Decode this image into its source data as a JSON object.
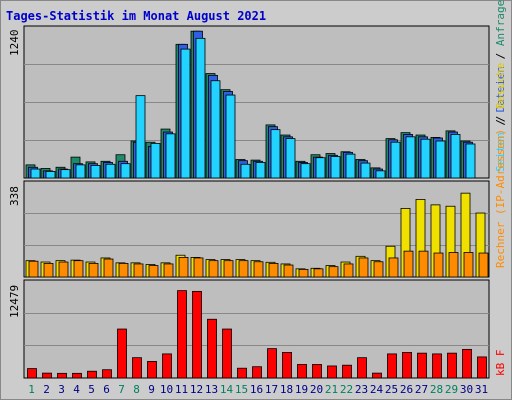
{
  "title": "Tages-Statistik im Monat August 2021",
  "colors": {
    "frame_bg": "#cccccc",
    "panel_bg": "#bebebe",
    "grid": "#888888",
    "title": "#0000cc",
    "weekday": "#000088",
    "weekend": "#008060",
    "anfragen": "#1f8a6a",
    "dateien": "#3060e0",
    "seiten": "#22d3ff",
    "besuche": "#f0e000",
    "rechner": "#ff8c00",
    "kbf": "#ff0000"
  },
  "labels": {
    "anfragen": "Anfragen",
    "sep1": " / ",
    "dateien": "Dateien",
    "sep2": " / ",
    "seiten": "Seiten",
    "besuche": "Besuche",
    "rechner_text": "Rechner (IP-Adressen)",
    "kbf": "kB F"
  },
  "chart_data": [
    {
      "type": "bar",
      "panel": "top",
      "ymax_label": "1240",
      "ylim": [
        0,
        1240
      ],
      "categories": [
        "1",
        "2",
        "3",
        "4",
        "5",
        "6",
        "7",
        "8",
        "9",
        "10",
        "11",
        "12",
        "13",
        "14",
        "15",
        "16",
        "17",
        "18",
        "19",
        "20",
        "21",
        "22",
        "23",
        "24",
        "25",
        "26",
        "27",
        "28",
        "29",
        "30",
        "31"
      ],
      "weekend_days": [
        "1",
        "7",
        "8",
        "14",
        "15",
        "21",
        "22",
        "28",
        "29"
      ],
      "series": [
        {
          "name": "Anfragen",
          "values": [
            110,
            80,
            90,
            175,
            135,
            140,
            195,
            310,
            300,
            410,
            1120,
            1230,
            875,
            740,
            155,
            150,
            445,
            360,
            140,
            195,
            205,
            220,
            155,
            85,
            330,
            380,
            360,
            340,
            395,
            310,
            0
          ]
        },
        {
          "name": "Dateien",
          "values": [
            90,
            60,
            75,
            120,
            120,
            130,
            140,
            300,
            265,
            385,
            1120,
            1230,
            860,
            725,
            145,
            140,
            430,
            345,
            130,
            175,
            190,
            215,
            145,
            75,
            320,
            365,
            345,
            335,
            385,
            300,
            0
          ]
        },
        {
          "name": "Seiten",
          "values": [
            75,
            55,
            70,
            110,
            105,
            115,
            120,
            690,
            290,
            370,
            1080,
            1170,
            815,
            695,
            115,
            130,
            405,
            330,
            120,
            170,
            180,
            200,
            125,
            60,
            300,
            345,
            325,
            310,
            365,
            285,
            0
          ]
        }
      ]
    },
    {
      "type": "bar",
      "panel": "middle",
      "ymax_label": "338",
      "ylim": [
        0,
        338
      ],
      "categories": [
        "1",
        "2",
        "3",
        "4",
        "5",
        "6",
        "7",
        "8",
        "9",
        "10",
        "11",
        "12",
        "13",
        "14",
        "15",
        "16",
        "17",
        "18",
        "19",
        "20",
        "21",
        "22",
        "23",
        "24",
        "25",
        "26",
        "27",
        "28",
        "29",
        "30",
        "31"
      ],
      "series": [
        {
          "name": "Besuche",
          "values": [
            60,
            55,
            60,
            62,
            55,
            70,
            52,
            52,
            46,
            52,
            80,
            72,
            64,
            64,
            64,
            60,
            54,
            48,
            30,
            32,
            42,
            55,
            76,
            60,
            113,
            252,
            285,
            265,
            260,
            308,
            235
          ]
        },
        {
          "name": "Rechner (IP-Adressen)",
          "values": [
            58,
            50,
            55,
            60,
            50,
            66,
            50,
            48,
            42,
            48,
            72,
            70,
            60,
            60,
            60,
            56,
            50,
            44,
            28,
            30,
            38,
            48,
            70,
            56,
            70,
            95,
            95,
            88,
            90,
            90,
            88
          ]
        }
      ]
    },
    {
      "type": "bar",
      "panel": "bottom",
      "ymax_label": "12479",
      "ylim": [
        0,
        12479
      ],
      "categories": [
        "1",
        "2",
        "3",
        "4",
        "5",
        "6",
        "7",
        "8",
        "9",
        "10",
        "11",
        "12",
        "13",
        "14",
        "15",
        "16",
        "17",
        "18",
        "19",
        "20",
        "21",
        "22",
        "23",
        "24",
        "25",
        "26",
        "27",
        "28",
        "29",
        "30",
        "31"
      ],
      "series": [
        {
          "name": "kB F",
          "values": [
            1250,
            650,
            620,
            620,
            900,
            1100,
            6500,
            2700,
            2200,
            3200,
            11600,
            11500,
            7800,
            6500,
            1300,
            1500,
            3900,
            3400,
            1800,
            1800,
            1600,
            1700,
            2700,
            650,
            3200,
            3400,
            3300,
            3200,
            3300,
            3800,
            2800
          ]
        }
      ]
    }
  ]
}
